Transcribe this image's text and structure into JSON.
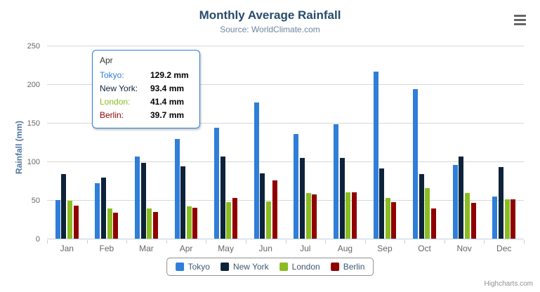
{
  "chart": {
    "title": "Monthly Average Rainfall",
    "subtitle": "Source: WorldClimate.com",
    "y_axis_title": "Rainfall (mm)",
    "credit": "Highcharts.com",
    "menu_icon": "hamburger-icon"
  },
  "chart_data": {
    "type": "bar",
    "title": "Monthly Average Rainfall",
    "subtitle": "Source: WorldClimate.com",
    "xlabel": "",
    "ylabel": "Rainfall (mm)",
    "ylim": [
      0,
      250
    ],
    "yticks": [
      0,
      50,
      100,
      150,
      200,
      250
    ],
    "grid": true,
    "legend_position": "bottom",
    "categories": [
      "Jan",
      "Feb",
      "Mar",
      "Apr",
      "May",
      "Jun",
      "Jul",
      "Aug",
      "Sep",
      "Oct",
      "Nov",
      "Dec"
    ],
    "series": [
      {
        "name": "Tokyo",
        "color": "#2f7ed8",
        "values": [
          49.9,
          71.5,
          106.4,
          129.2,
          144.0,
          176.0,
          135.6,
          148.5,
          216.4,
          194.1,
          95.6,
          54.4
        ]
      },
      {
        "name": "New York",
        "color": "#0d233a",
        "values": [
          83.6,
          78.8,
          98.5,
          93.4,
          106.0,
          84.5,
          105.0,
          104.3,
          91.2,
          83.5,
          106.6,
          92.3
        ]
      },
      {
        "name": "London",
        "color": "#8bbc21",
        "values": [
          48.9,
          38.8,
          39.3,
          41.4,
          47.0,
          48.3,
          59.0,
          59.6,
          52.4,
          65.2,
          59.3,
          51.2
        ]
      },
      {
        "name": "Berlin",
        "color": "#910000",
        "values": [
          42.4,
          33.2,
          34.5,
          39.7,
          52.6,
          75.5,
          57.4,
          60.4,
          47.6,
          39.1,
          46.8,
          51.1
        ]
      }
    ]
  },
  "tooltip": {
    "category": "Apr",
    "border_color": "#2f7ed8",
    "rows": [
      {
        "label": "Tokyo:",
        "value": "129.2 mm",
        "color": "#2f7ed8"
      },
      {
        "label": "New York:",
        "value": "93.4 mm",
        "color": "#0d233a"
      },
      {
        "label": "London:",
        "value": "41.4 mm",
        "color": "#8bbc21"
      },
      {
        "label": "Berlin:",
        "value": "39.7 mm",
        "color": "#910000"
      }
    ]
  },
  "colors": {
    "grid_line": "#d8d8d8",
    "axis_line": "#c0d0e0",
    "title_text": "#274b6d",
    "subtitle_text": "#6d869f"
  }
}
